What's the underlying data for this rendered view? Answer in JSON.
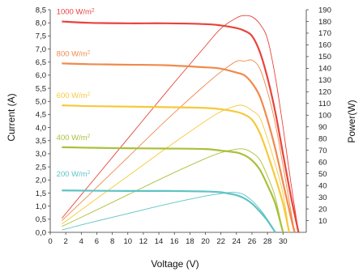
{
  "chart_data": {
    "type": "line",
    "xlabel": "Voltage (V)",
    "ylabel_left": "Current (A)",
    "ylabel_right": "Power(W)",
    "xlim": [
      0,
      33
    ],
    "ylim_left": [
      0,
      8.5
    ],
    "ylim_right": [
      0,
      190
    ],
    "x_ticks": [
      "0",
      "2",
      "4",
      "6",
      "8",
      "10",
      "12",
      "14",
      "16",
      "18",
      "20",
      "22",
      "24",
      "26",
      "28",
      "30"
    ],
    "y_left_ticks": [
      "0,0",
      "0,5",
      "1,0",
      "1,5",
      "2,0",
      "2,5",
      "3,0",
      "3,5",
      "4,0",
      "4,5",
      "5,0",
      "5,5",
      "6,0",
      "6,5",
      "7,0",
      "7,5",
      "8,0",
      "8,5"
    ],
    "y_right_ticks": [
      "10",
      "20",
      "30",
      "40",
      "50",
      "60",
      "70",
      "80",
      "90",
      "100",
      "110",
      "120",
      "130",
      "140",
      "150",
      "160",
      "170",
      "180",
      "190"
    ],
    "series": [
      {
        "name": "1000 W/m",
        "name_sup": "2",
        "color": "#e8433a",
        "iv_curve": [
          [
            1.5,
            8.05
          ],
          [
            5,
            8.0
          ],
          [
            10,
            7.98
          ],
          [
            15,
            7.98
          ],
          [
            20,
            7.95
          ],
          [
            22,
            7.9
          ],
          [
            24,
            7.8
          ],
          [
            25,
            7.7
          ],
          [
            26,
            7.5
          ],
          [
            27,
            6.9
          ],
          [
            28,
            5.9
          ],
          [
            29,
            4.6
          ],
          [
            30,
            3.0
          ],
          [
            31,
            1.4
          ],
          [
            32,
            0.0
          ]
        ],
        "power_curve": [
          [
            1.5,
            12
          ],
          [
            5,
            40
          ],
          [
            10,
            80
          ],
          [
            15,
            120
          ],
          [
            20,
            159
          ],
          [
            22,
            174
          ],
          [
            24,
            183
          ],
          [
            25,
            185
          ],
          [
            26,
            184
          ],
          [
            27,
            178
          ],
          [
            28,
            165
          ],
          [
            29,
            133
          ],
          [
            30,
            90
          ],
          [
            31,
            43
          ],
          [
            32,
            0
          ]
        ]
      },
      {
        "name": "800 W/m",
        "name_sup": "2",
        "color": "#f08a4b",
        "iv_curve": [
          [
            1.5,
            6.45
          ],
          [
            5,
            6.42
          ],
          [
            10,
            6.4
          ],
          [
            15,
            6.38
          ],
          [
            20,
            6.3
          ],
          [
            22,
            6.25
          ],
          [
            24,
            6.1
          ],
          [
            25,
            6.0
          ],
          [
            26,
            5.7
          ],
          [
            27,
            5.2
          ],
          [
            28,
            4.3
          ],
          [
            29,
            3.2
          ],
          [
            30,
            1.9
          ],
          [
            31,
            0.6
          ],
          [
            31.5,
            0.0
          ]
        ],
        "power_curve": [
          [
            1.5,
            10
          ],
          [
            5,
            32
          ],
          [
            10,
            64
          ],
          [
            15,
            96
          ],
          [
            20,
            126
          ],
          [
            22,
            137
          ],
          [
            24,
            146
          ],
          [
            25,
            146
          ],
          [
            26,
            147
          ],
          [
            27,
            140
          ],
          [
            28,
            120
          ],
          [
            29,
            93
          ],
          [
            30,
            57
          ],
          [
            31,
            19
          ],
          [
            31.5,
            0
          ]
        ]
      },
      {
        "name": "600 W/m",
        "name_sup": "2",
        "color": "#f6c93b",
        "iv_curve": [
          [
            1.5,
            4.85
          ],
          [
            5,
            4.82
          ],
          [
            10,
            4.8
          ],
          [
            15,
            4.78
          ],
          [
            20,
            4.75
          ],
          [
            22,
            4.7
          ],
          [
            24,
            4.6
          ],
          [
            25,
            4.5
          ],
          [
            26,
            4.3
          ],
          [
            27,
            3.8
          ],
          [
            28,
            3.0
          ],
          [
            29,
            2.1
          ],
          [
            30,
            1.1
          ],
          [
            30.8,
            0.0
          ]
        ],
        "power_curve": [
          [
            1.5,
            7
          ],
          [
            5,
            24
          ],
          [
            10,
            48
          ],
          [
            15,
            72
          ],
          [
            20,
            95
          ],
          [
            22,
            103
          ],
          [
            24,
            108
          ],
          [
            25,
            108
          ],
          [
            26,
            104
          ],
          [
            27,
            98
          ],
          [
            28,
            80
          ],
          [
            29,
            58
          ],
          [
            30,
            33
          ],
          [
            30.8,
            0
          ]
        ]
      },
      {
        "name": "400 W/m",
        "name_sup": "2",
        "color": "#a8c13a",
        "iv_curve": [
          [
            1.5,
            3.25
          ],
          [
            5,
            3.23
          ],
          [
            10,
            3.21
          ],
          [
            15,
            3.2
          ],
          [
            20,
            3.18
          ],
          [
            22,
            3.12
          ],
          [
            24,
            3.05
          ],
          [
            25,
            2.95
          ],
          [
            26,
            2.75
          ],
          [
            27,
            2.4
          ],
          [
            28,
            1.8
          ],
          [
            29,
            1.1
          ],
          [
            30,
            0.0
          ]
        ],
        "power_curve": [
          [
            1.5,
            5
          ],
          [
            5,
            16
          ],
          [
            10,
            32
          ],
          [
            15,
            48
          ],
          [
            20,
            63
          ],
          [
            22,
            68
          ],
          [
            24,
            71
          ],
          [
            25,
            71
          ],
          [
            26,
            68
          ],
          [
            27,
            62
          ],
          [
            28,
            48
          ],
          [
            29,
            30
          ],
          [
            30,
            0
          ]
        ]
      },
      {
        "name": "200 W/m",
        "name_sup": "2",
        "color": "#5ec3c4",
        "iv_curve": [
          [
            1.5,
            1.6
          ],
          [
            5,
            1.59
          ],
          [
            10,
            1.58
          ],
          [
            15,
            1.58
          ],
          [
            20,
            1.56
          ],
          [
            22,
            1.53
          ],
          [
            23,
            1.48
          ],
          [
            24,
            1.42
          ],
          [
            25,
            1.3
          ],
          [
            26,
            1.1
          ],
          [
            27,
            0.8
          ],
          [
            28,
            0.45
          ],
          [
            29,
            0.0
          ]
        ],
        "power_curve": [
          [
            1.5,
            2
          ],
          [
            5,
            8
          ],
          [
            10,
            16
          ],
          [
            15,
            24
          ],
          [
            20,
            31
          ],
          [
            22,
            33
          ],
          [
            23,
            34
          ],
          [
            24,
            34
          ],
          [
            25,
            32
          ],
          [
            26,
            27
          ],
          [
            27,
            20
          ],
          [
            28,
            11
          ],
          [
            29,
            0
          ]
        ]
      }
    ]
  }
}
